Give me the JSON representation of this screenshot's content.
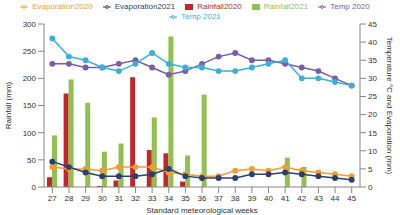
{
  "chart_data": {
    "type": "bar",
    "x_label": "Standard meteorological weeks",
    "y_label": "Rainfall (mm)",
    "y2_label": "Temperature °C and Evaporation (mm)",
    "categories": [
      "27",
      "28",
      "29",
      "30",
      "31",
      "32",
      "33",
      "34",
      "35",
      "36",
      "37",
      "38",
      "39",
      "40",
      "41",
      "42",
      "43",
      "44",
      "45"
    ],
    "ylim": [
      0,
      300
    ],
    "yticks": [
      0,
      50,
      100,
      150,
      200,
      250,
      300
    ],
    "y2lim": [
      0,
      45
    ],
    "y2ticks": [
      0,
      5,
      10,
      15,
      20,
      25,
      30,
      35,
      40,
      45
    ],
    "grid": false,
    "legend": "top",
    "series": [
      {
        "name": "Rainfall2020",
        "type": "bar",
        "axis": "y",
        "color": "#c0272d",
        "values": [
          18,
          172,
          0,
          2,
          12,
          202,
          68,
          62,
          10,
          0,
          0,
          0,
          0,
          0,
          0,
          0,
          0,
          0,
          0
        ]
      },
      {
        "name": "Rainfall2021",
        "type": "bar",
        "axis": "y",
        "color": "#92c050",
        "values": [
          95,
          198,
          155,
          65,
          80,
          0,
          128,
          277,
          58,
          170,
          0,
          0,
          0,
          0,
          54,
          37,
          0,
          0,
          0
        ]
      },
      {
        "name": "Temp 2020",
        "type": "line",
        "axis": "y2",
        "marker": "circle",
        "color": "#7b5ea7",
        "values": [
          34,
          34,
          33,
          33,
          34,
          35,
          33,
          31,
          32,
          34,
          36,
          37,
          35,
          35,
          34,
          33,
          32,
          30,
          28
        ]
      },
      {
        "name": "Temp 2021",
        "type": "line",
        "axis": "y2",
        "marker": "circle",
        "color": "#3bb0d8",
        "values": [
          41,
          36,
          35,
          33,
          32,
          34,
          37,
          34,
          33,
          33,
          32,
          32,
          33,
          34,
          35,
          30,
          30,
          29,
          28
        ]
      },
      {
        "name": "Evaporation2020",
        "type": "line",
        "axis": "y2",
        "marker": "circle",
        "color": "#f39c33",
        "values": [
          5.5,
          5,
          5,
          4.5,
          5.5,
          5.5,
          5.5,
          4,
          3.5,
          3,
          3,
          4.5,
          5,
          4.5,
          5.5,
          4.5,
          4,
          3.5,
          3
        ]
      },
      {
        "name": "Evaporation2021",
        "type": "line",
        "axis": "y2",
        "marker": "circle",
        "color": "#2e3f6e",
        "values": [
          7,
          5.5,
          4,
          3,
          3,
          3,
          3.5,
          5,
          3,
          2.5,
          2.5,
          2.5,
          3.5,
          3.5,
          4,
          3.5,
          3,
          2.5,
          2
        ]
      }
    ]
  }
}
